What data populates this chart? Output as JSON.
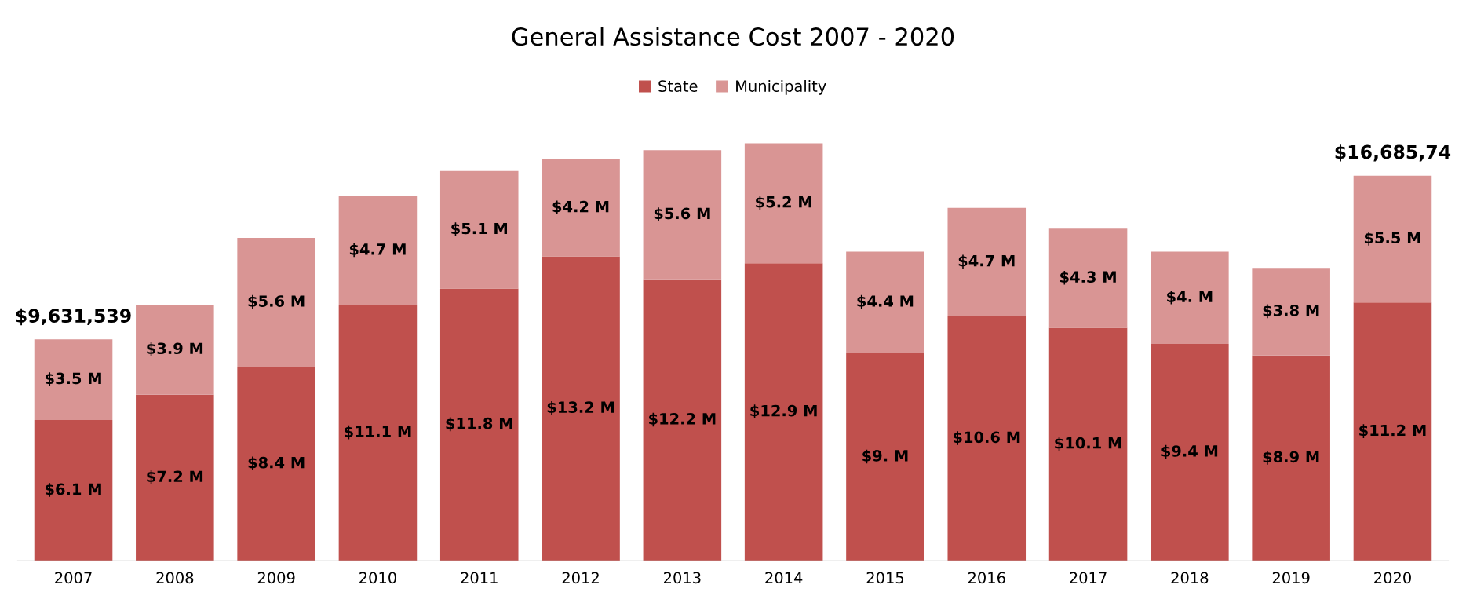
{
  "chart_data": {
    "type": "bar",
    "title": "General Assistance Cost 2007 - 2020",
    "stacked": true,
    "legend": "top",
    "categories": [
      "2007",
      "2008",
      "2009",
      "2010",
      "2011",
      "2012",
      "2013",
      "2014",
      "2015",
      "2016",
      "2017",
      "2018",
      "2019",
      "2020"
    ],
    "series": [
      {
        "name": "State",
        "color": "#c0504d",
        "values": [
          6.1,
          7.2,
          8.4,
          11.1,
          11.8,
          13.2,
          12.2,
          12.9,
          9.0,
          10.6,
          10.1,
          9.4,
          8.9,
          11.2
        ],
        "value_labels": [
          "$6.1 M",
          "$7.2 M",
          "$8.4 M",
          "$11.1 M",
          "$11.8 M",
          "$13.2 M",
          "$12.2 M",
          "$12.9 M",
          "$9. M",
          "$10.6 M",
          "$10.1 M",
          "$9.4 M",
          "$8.9 M",
          "$11.2 M"
        ]
      },
      {
        "name": "Municipality",
        "color": "#d99594",
        "values": [
          3.5,
          3.9,
          5.6,
          4.7,
          5.1,
          4.2,
          5.6,
          5.2,
          4.4,
          4.7,
          4.3,
          4.0,
          3.8,
          5.5
        ],
        "value_labels": [
          "$3.5 M",
          "$3.9 M",
          "$5.6 M",
          "$4.7 M",
          "$5.1 M",
          "$4.2 M",
          "$5.6 M",
          "$5.2 M",
          "$4.4 M",
          "$4.7 M",
          "$4.3 M",
          "$4. M",
          "$3.8 M",
          "$5.5 M"
        ]
      }
    ],
    "annotations": [
      {
        "text": "$9,631,539",
        "x": "2007",
        "y": 9.6
      },
      {
        "text": "$16,685,74",
        "x": "2020",
        "y": 16.7
      }
    ]
  }
}
